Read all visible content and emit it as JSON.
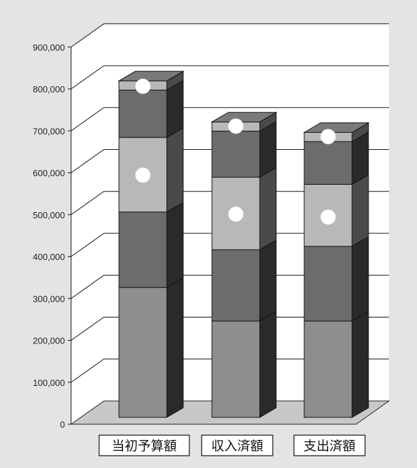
{
  "chart_data": {
    "type": "bar",
    "stacked": true,
    "three_d": true,
    "categories": [
      "当初予算額",
      "収入済額",
      "支出済額"
    ],
    "series": [
      {
        "values": [
          310000,
          230000,
          230000
        ],
        "color": "#8e8e8e"
      },
      {
        "values": [
          180000,
          170000,
          178000
        ],
        "color": "#6c6c6c"
      },
      {
        "values": [
          178000,
          173000,
          148000
        ],
        "color": "#b8b8b8"
      },
      {
        "values": [
          113000,
          110000,
          102000
        ],
        "color": "#6c6c6c"
      },
      {
        "values": [
          22000,
          22000,
          22000
        ],
        "color": "#b8b8b8"
      }
    ],
    "markers": [
      {
        "category": 0,
        "value": 790000
      },
      {
        "category": 0,
        "value": 578000
      },
      {
        "category": 1,
        "value": 695000
      },
      {
        "category": 1,
        "value": 485000
      },
      {
        "category": 2,
        "value": 670000
      },
      {
        "category": 2,
        "value": 478000
      }
    ],
    "y_ticks": [
      0,
      100000,
      200000,
      300000,
      400000,
      500000,
      600000,
      700000,
      800000,
      900000
    ],
    "y_tick_labels": [
      "0",
      "100,000",
      "200,000",
      "300,000",
      "400,000",
      "500,000",
      "600,000",
      "700,000",
      "800,000",
      "900,000"
    ],
    "ylim": [
      0,
      900000
    ],
    "grid": true,
    "legend": "none",
    "colors": {
      "background": "#e4e4e4",
      "plot_back": "#ffffff",
      "floor": "#c8c8c8",
      "side_dark": "#2a2a2a",
      "marker": "#ffffff"
    }
  }
}
